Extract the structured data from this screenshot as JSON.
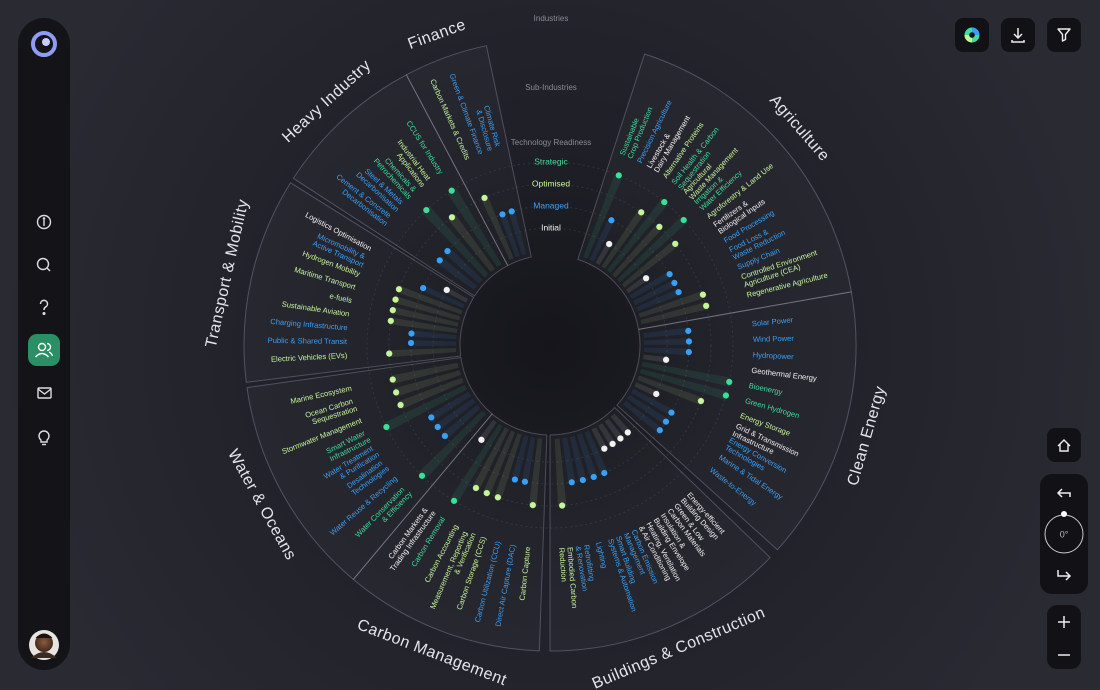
{
  "ui": {
    "rotation": "0°"
  },
  "chart_data": {
    "type": "radial",
    "ring_labels": [
      "Industries",
      "Sub-Industries",
      "Technology Readiness"
    ],
    "rlim": [
      0,
      4
    ],
    "rticks": [
      {
        "value": 1,
        "label": "Initial"
      },
      {
        "value": 2,
        "label": "Managed"
      },
      {
        "value": 3,
        "label": "Optimised"
      },
      {
        "value": 4,
        "label": "Strategic"
      }
    ],
    "colors": [
      "#f2f2f2",
      "#3aa0f5",
      "#c6f59c",
      "#3fdc9a"
    ],
    "series": [
      {
        "name": "Agriculture",
        "categories": [
          "Sustainable Crop Production",
          "Precision Agriculture",
          "Livestock & Dairy Management",
          "Alternative Proteins",
          "Soil Health & Carbon Sequestration",
          "Agricultural Waste Management",
          "Irrigation & Water Efficiency",
          "Agroforestry & Land Use",
          "Fertilizers & Biological Inputs",
          "Food Processing",
          "Food Loss & Waste Reduction",
          "Supply Chain",
          "Controlled Environment Agriculture (CEA)",
          "Regenerative Agriculture"
        ],
        "values": [
          4,
          2,
          1,
          3,
          4,
          3,
          4,
          3,
          1,
          2,
          2,
          2,
          3,
          3
        ]
      },
      {
        "name": "Clean Energy",
        "categories": [
          "Solar Power",
          "Wind Power",
          "Hydropower",
          "Geothermal Energy",
          "Bioenergy",
          "Green Hydrogen",
          "Energy Storage",
          "Grid & Transmission Infrastructure",
          "Energy Conversion Technologies",
          "Marine & Tidal Energy",
          "Waste-to-Energy"
        ],
        "values": [
          2,
          2,
          2,
          1,
          4,
          4,
          3,
          1,
          2,
          2,
          2
        ]
      },
      {
        "name": "Buildings & Construction",
        "categories": [
          "Energy-efficient Building Design",
          "Green & Low Carbon Materials",
          "Insulation & Building Envelope",
          "Heating, Ventilation & Air Conditioning",
          "Carbon Emission Management",
          "Smart Building Systems & Automation",
          "Lighting",
          "Retrofitting & Renovation",
          "Embodied Carbon Reduction"
        ],
        "values": [
          1,
          1,
          1,
          1,
          2,
          2,
          2,
          2,
          3
        ]
      },
      {
        "name": "Carbon Management",
        "categories": [
          "Carbon Capture",
          "Direct Air Capture (DAC)",
          "Carbon Utilization (CCU)",
          "Carbon Storage (CCS)",
          "Measurement, Reporting & Verification",
          "Carbon Accounting",
          "Carbon Removal",
          "Carbon Markets & Trading Infrastructure"
        ],
        "values": [
          3,
          2,
          2,
          3,
          3,
          3,
          4,
          1
        ]
      },
      {
        "name": "Water & Oceans",
        "categories": [
          "Water Conservation & Efficiency",
          "Water Reuse & Recycling",
          "Desalination Technologies",
          "Water Treatment & Purification",
          "Smart Water Infrastructure",
          "Stormwater Management",
          "Ocean Carbon Sequestration",
          "Marine Ecosystem"
        ],
        "values": [
          4,
          2,
          2,
          2,
          4,
          3,
          3,
          3
        ]
      },
      {
        "name": "Transport & Mobility",
        "categories": [
          "Electric Vehicles (EVs)",
          "Public & Shared Transit",
          "Charging Infrastructure",
          "Sustainable Aviation",
          "e-fuels",
          "Maritime Transport",
          "Hydrogen Mobility",
          "Micromobility & Active Transport",
          "Logistics Optimisation"
        ],
        "values": [
          3,
          2,
          2,
          3,
          3,
          3,
          3,
          2,
          1
        ]
      },
      {
        "name": "Heavy Industry",
        "categories": [
          "Cement & Concrete Decarbonisation",
          "Steel & Metals Decarbonisation",
          "Chemicals & Petrochemicals",
          "Industrial Heat Applications",
          "CCUS for Industry"
        ],
        "values": [
          2,
          2,
          4,
          3,
          4
        ]
      },
      {
        "name": "Finance",
        "categories": [
          "Carbon Markets & Credits",
          "Green & Climate Finance",
          "Climate Risk & Disclosure"
        ],
        "values": [
          3,
          2,
          2
        ]
      }
    ]
  }
}
